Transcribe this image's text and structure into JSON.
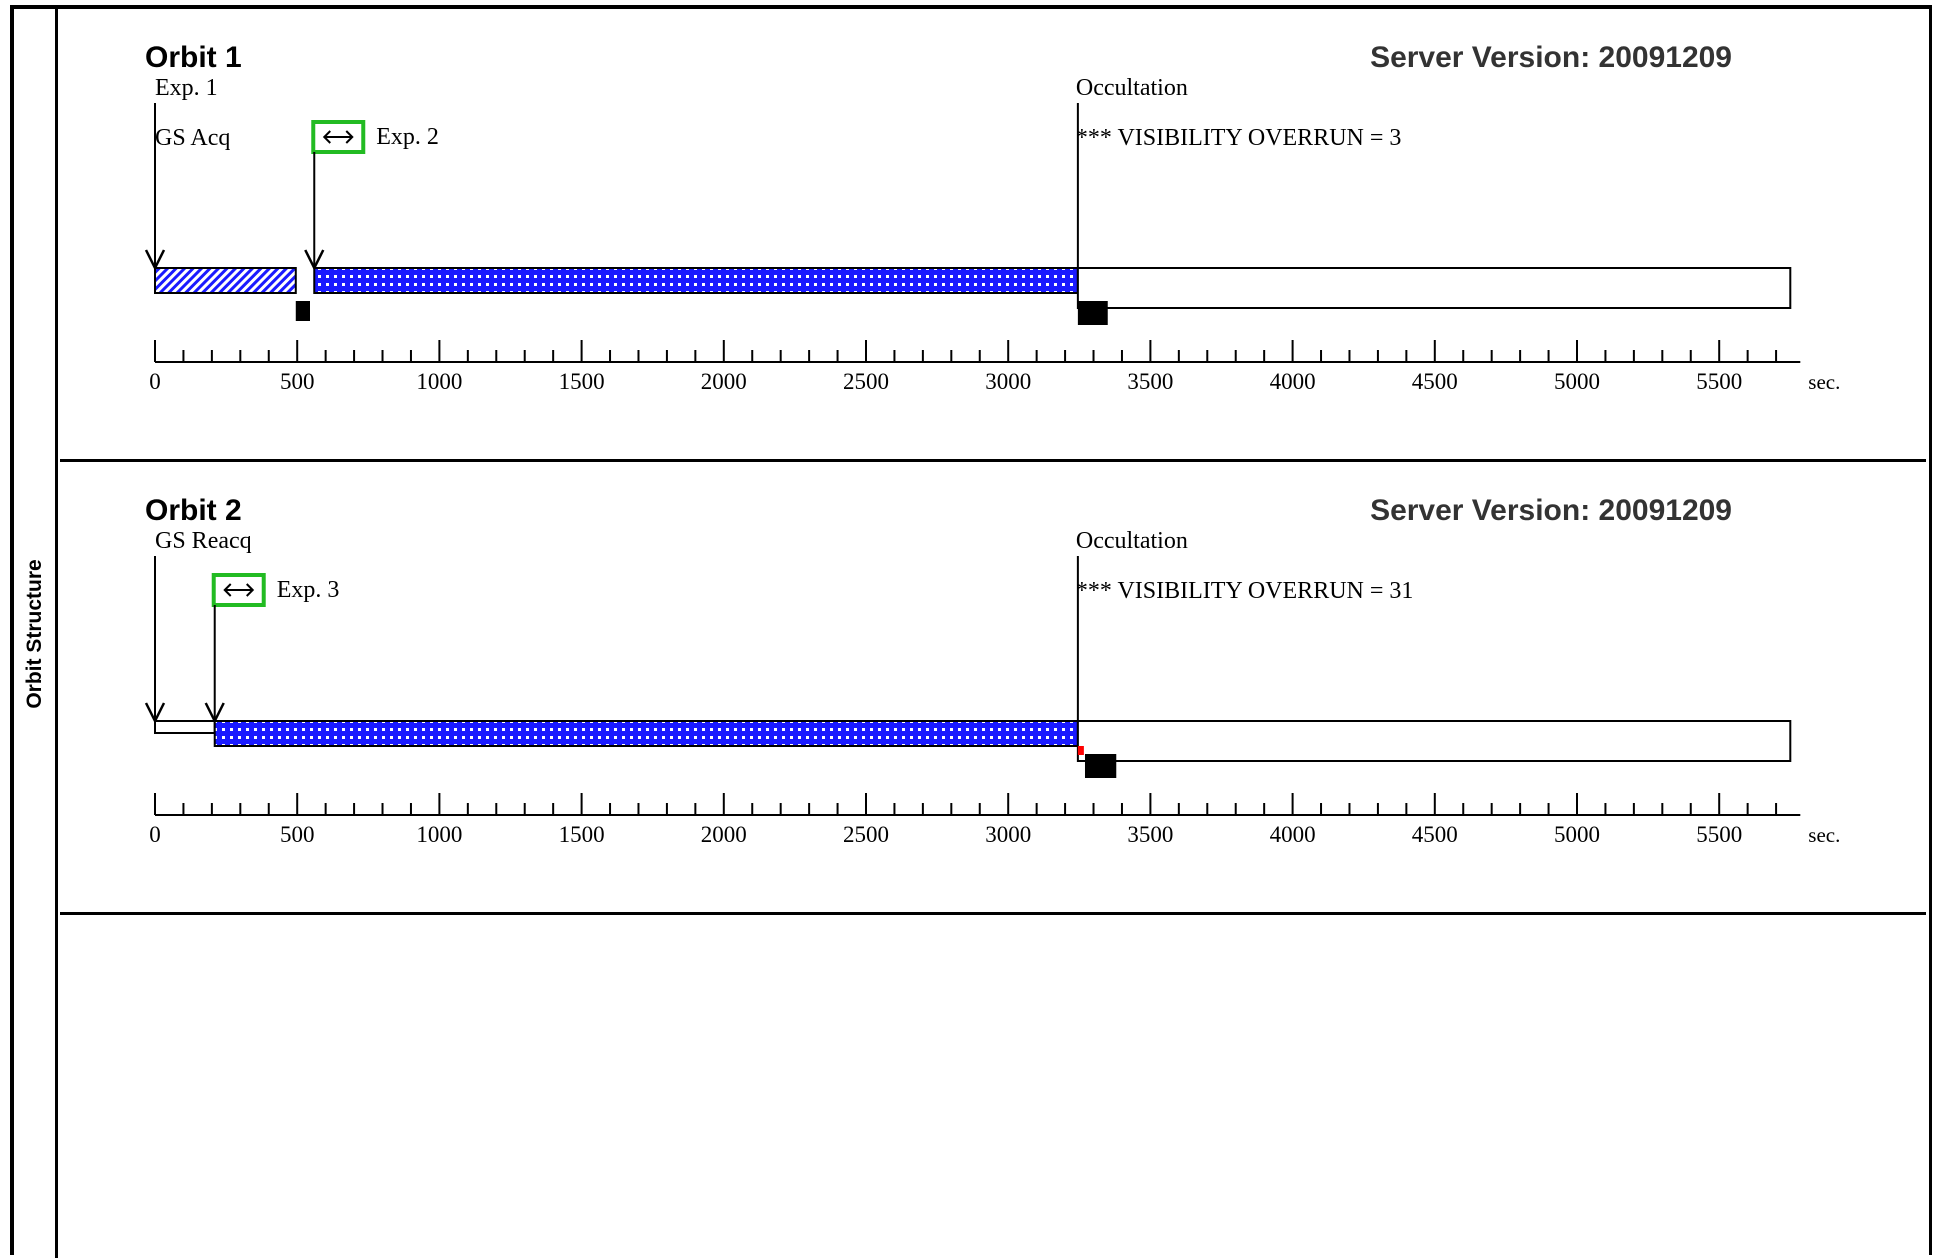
{
  "sidebar": {
    "title": "Orbit Structure"
  },
  "colors": {
    "exposure_fill": "#1a1aff",
    "selection_box": "#22bb22",
    "overrun_marker": "#ff0000",
    "ink": "#000000"
  },
  "timeline": {
    "unit": "sec.",
    "tick_labels": [
      "0",
      "500",
      "1000",
      "1500",
      "2000",
      "2500",
      "3000",
      "3500",
      "4000",
      "4500",
      "5000",
      "5500"
    ],
    "max": 5750
  },
  "orbits": [
    {
      "title": "Orbit 1",
      "server_version": "Server Version: 20091209",
      "occultation_label": "Occultation",
      "overrun_text": "*** VISIBILITY OVERRUN = 3",
      "events": [
        {
          "label": "Exp. 1",
          "sublabel": "GS Acq",
          "time": 0
        },
        {
          "label": "Exp. 2",
          "time": 560,
          "selected": true
        }
      ],
      "segments": [
        {
          "kind": "acquisition",
          "start": 0,
          "end": 495
        },
        {
          "kind": "exposure",
          "start": 560,
          "end": 3245
        },
        {
          "kind": "occultation",
          "start": 3245,
          "end": 5750
        }
      ],
      "markers": [
        {
          "start": 495,
          "end": 545
        },
        {
          "start": 3245,
          "end": 3350
        }
      ],
      "overrun_seconds": 3,
      "occultation_time": 3245
    },
    {
      "title": "Orbit 2",
      "server_version": "Server Version: 20091209",
      "occultation_label": "Occultation",
      "overrun_text": "*** VISIBILITY OVERRUN = 31",
      "events": [
        {
          "label": "GS Reacq",
          "time": 0
        },
        {
          "label": "Exp. 3",
          "time": 210,
          "selected": true
        }
      ],
      "segments": [
        {
          "kind": "reacquisition",
          "start": 0,
          "end": 210
        },
        {
          "kind": "exposure",
          "start": 210,
          "end": 3245
        },
        {
          "kind": "occultation",
          "start": 3245,
          "end": 5750
        }
      ],
      "markers": [
        {
          "start": 3270,
          "end": 3380
        }
      ],
      "overrun_seconds": 31,
      "occultation_time": 3245
    }
  ]
}
